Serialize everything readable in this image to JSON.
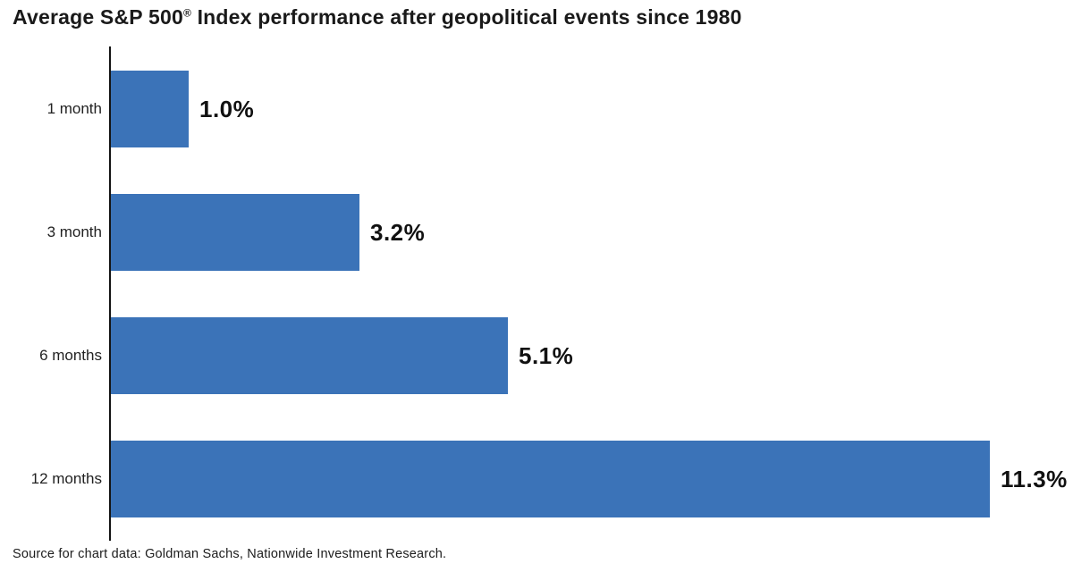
{
  "title": {
    "pre": "Average S&P 500",
    "sup": "®",
    "post": " Index performance after geopolitical events since 1980"
  },
  "source": "Source for chart data: Goldman Sachs, Nationwide Investment Research.",
  "colors": {
    "bar": "#3b73b8",
    "axis": "#141414",
    "title_text": "#1a1a1a",
    "value_text": "#111111",
    "category_text": "#222222"
  },
  "chart_data": {
    "type": "bar",
    "orientation": "horizontal",
    "title": "Average S&P 500® Index performance after geopolitical events since 1980",
    "categories": [
      "1 month",
      "3 month",
      "6 months",
      "12 months"
    ],
    "values": [
      1.0,
      3.2,
      5.1,
      11.3
    ],
    "value_labels": [
      "1.0%",
      "3.2%",
      "5.1%",
      "11.3%"
    ],
    "xlabel": "",
    "ylabel": "",
    "xlim": [
      0,
      12
    ],
    "grid": false,
    "legend": false,
    "data_labels_position": "right-of-bar",
    "source_note": "Source for chart data: Goldman Sachs, Nationwide Investment Research."
  }
}
